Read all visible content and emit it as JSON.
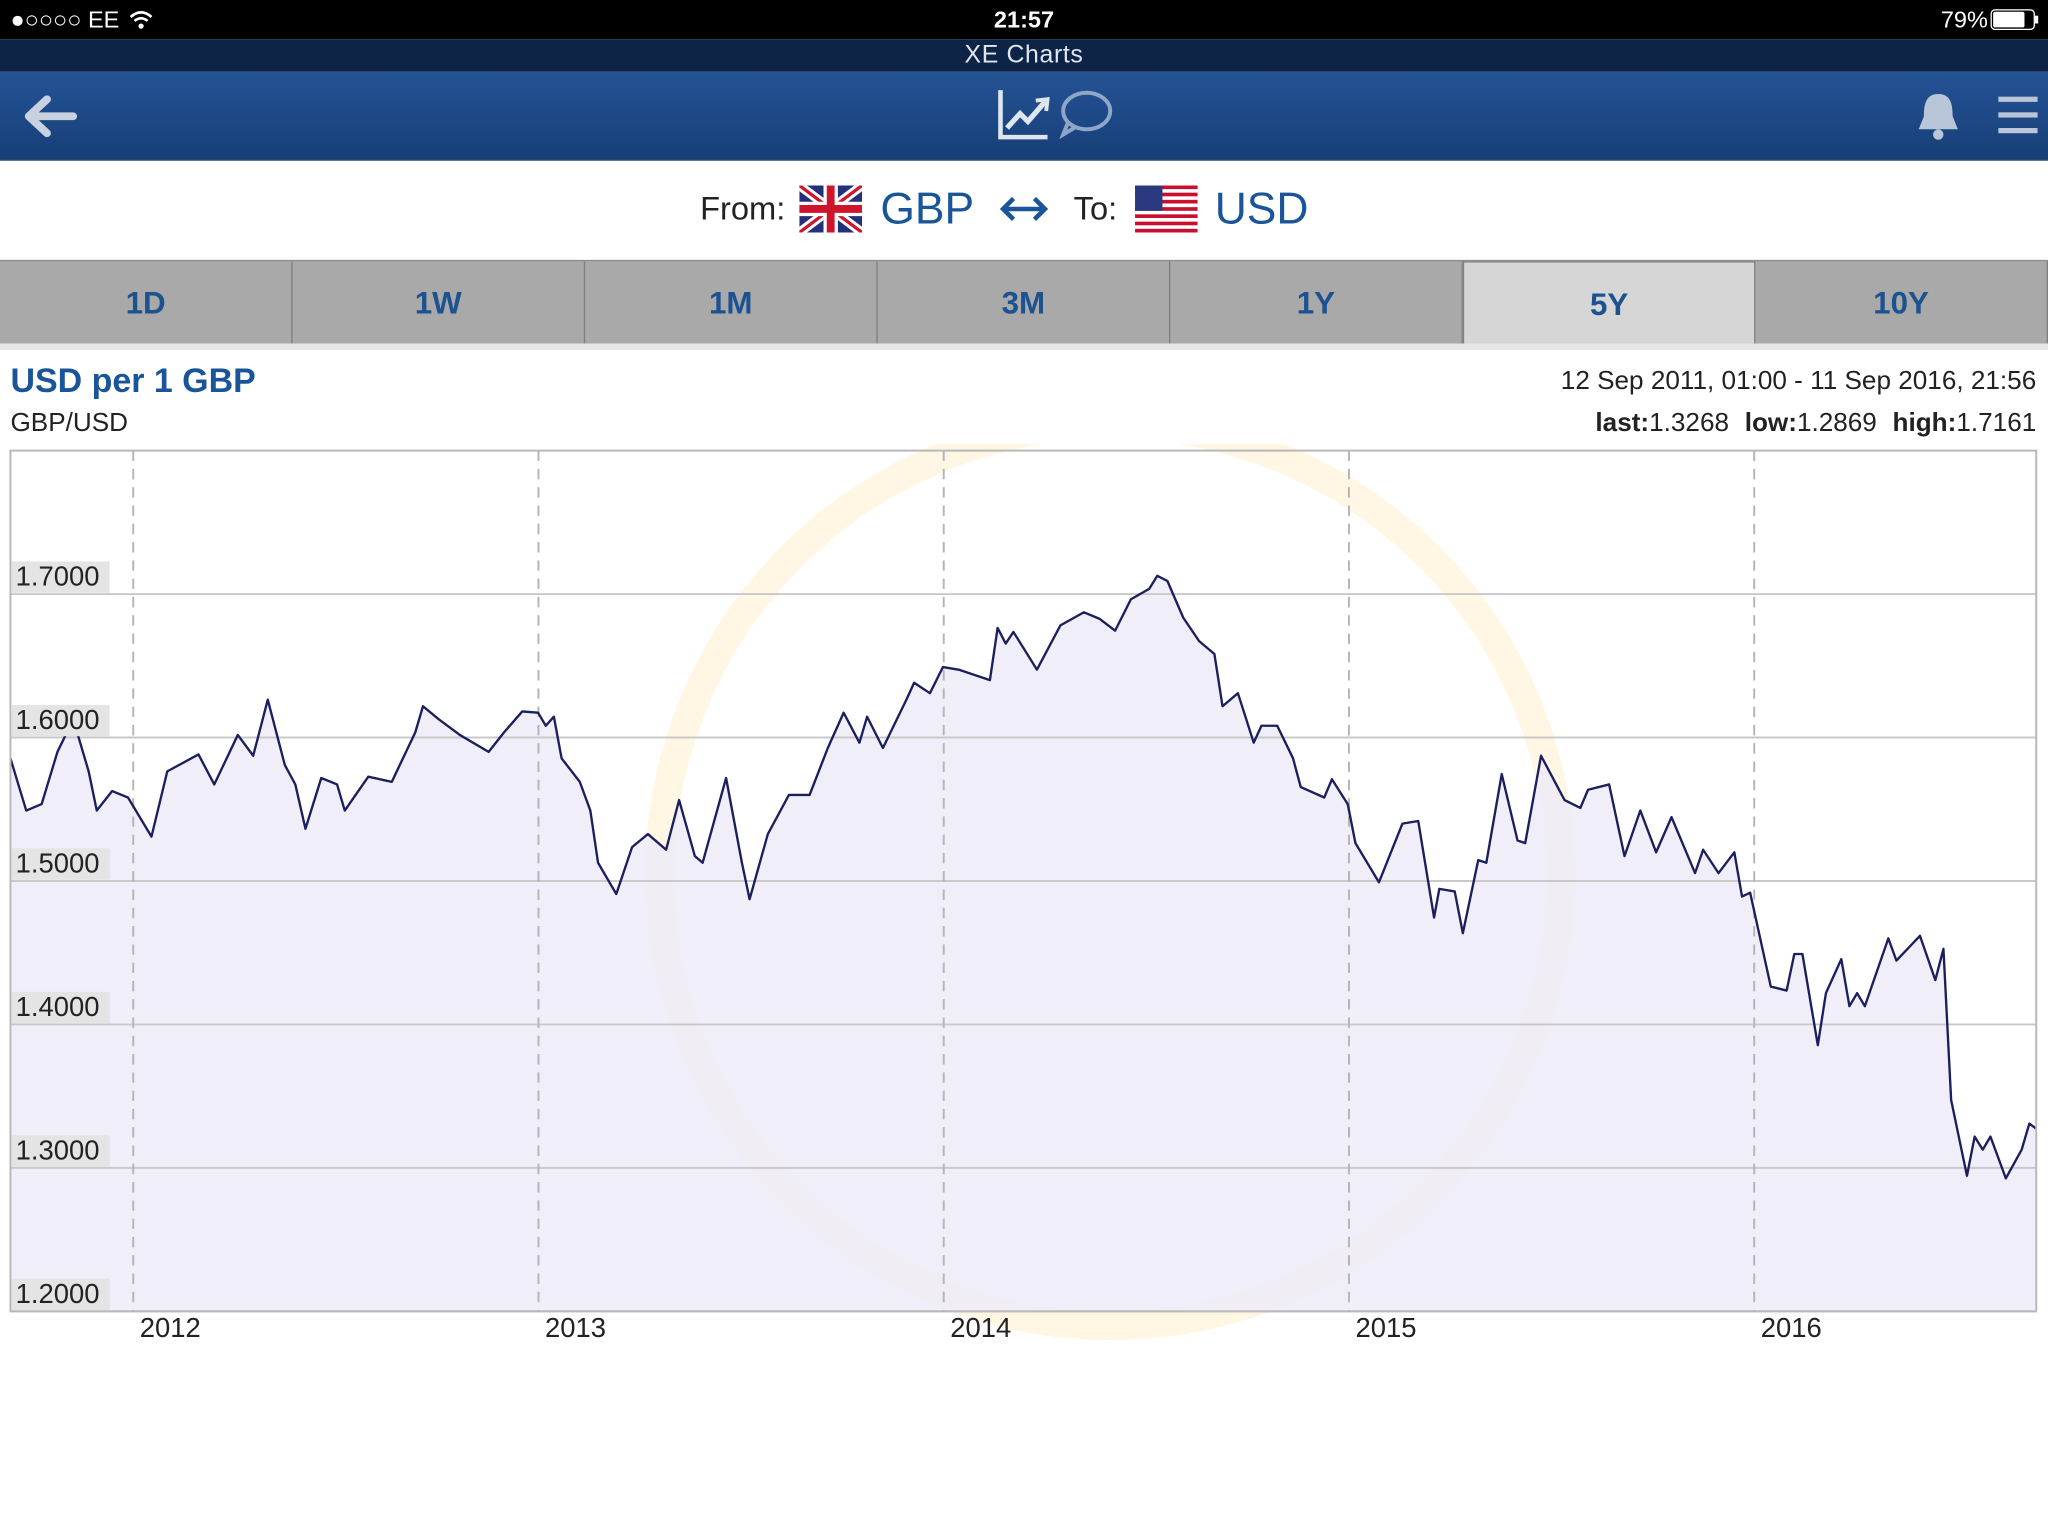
{
  "status_bar": {
    "carrier": "●○○○○ EE",
    "time": "21:57",
    "battery": "79%"
  },
  "app_title": "XE Charts",
  "converter": {
    "from_label": "From:",
    "from_currency": "GBP",
    "to_label": "To:",
    "to_currency": "USD"
  },
  "tabs": [
    "1D",
    "1W",
    "1M",
    "3M",
    "1Y",
    "5Y",
    "10Y"
  ],
  "selected_tab": 5,
  "chart_header": {
    "pair": "GBP/USD",
    "range": "12 Sep 2011, 01:00 - 11 Sep 2016, 21:56",
    "stats": [
      {
        "label": "last:",
        "value": 1.3268
      },
      {
        "label": "low:",
        "value": 1.2869
      },
      {
        "label": "high:",
        "value": 1.7161
      }
    ]
  },
  "chart_data": {
    "type": "line",
    "title": "USD per 1 GBP",
    "color": "#1b1f5e",
    "area_color": "#ecebf7",
    "grid": true,
    "xlim": [
      2011.697,
      2016.696
    ],
    "ylim": [
      1.2,
      1.8
    ],
    "xticks": [
      2012,
      2013,
      2014,
      2015,
      2016
    ],
    "yticks": [
      {
        "value": 1.2,
        "label": "1.2000"
      },
      {
        "value": 1.3,
        "label": "1.3000"
      },
      {
        "value": 1.4,
        "label": "1.4000"
      },
      {
        "value": 1.5,
        "label": "1.5000"
      },
      {
        "value": 1.6,
        "label": "1.6000"
      },
      {
        "value": 1.7,
        "label": "1.7000"
      }
    ],
    "x": [
      2011.697,
      2011.736,
      2011.774,
      2011.813,
      2011.852,
      2011.89,
      2011.91,
      2011.948,
      2011.987,
      2012.045,
      2012.084,
      2012.161,
      2012.2,
      2012.258,
      2012.296,
      2012.332,
      2012.374,
      2012.4,
      2012.425,
      2012.464,
      2012.503,
      2012.522,
      2012.58,
      2012.638,
      2012.696,
      2012.715,
      2012.754,
      2012.806,
      2012.877,
      2012.915,
      2012.96,
      2012.999,
      2013.018,
      2013.038,
      2013.057,
      2013.102,
      2013.128,
      2013.147,
      2013.192,
      2013.231,
      2013.27,
      2013.315,
      2013.347,
      2013.386,
      2013.405,
      2013.463,
      2013.502,
      2013.521,
      2013.566,
      2013.618,
      2013.669,
      2013.714,
      2013.753,
      2013.792,
      2013.811,
      2013.85,
      2013.908,
      2013.927,
      2013.966,
      2013.998,
      2014.037,
      2014.114,
      2014.133,
      2014.153,
      2014.172,
      2014.23,
      2014.288,
      2014.346,
      2014.385,
      2014.423,
      2014.462,
      2014.507,
      2014.527,
      2014.552,
      2014.591,
      2014.63,
      2014.668,
      2014.688,
      2014.726,
      2014.765,
      2014.784,
      2014.823,
      2014.862,
      2014.881,
      2014.939,
      2014.958,
      2014.997,
      2015.016,
      2015.074,
      2015.132,
      2015.171,
      2015.21,
      2015.223,
      2015.261,
      2015.281,
      2015.319,
      2015.339,
      2015.377,
      2015.416,
      2015.435,
      2015.474,
      2015.532,
      2015.571,
      2015.59,
      2015.642,
      2015.68,
      2015.719,
      2015.758,
      2015.796,
      2015.854,
      2015.874,
      2015.912,
      2015.951,
      2015.97,
      2015.99,
      2016.041,
      2016.08,
      2016.099,
      2016.119,
      2016.157,
      2016.177,
      2016.215,
      2016.235,
      2016.254,
      2016.273,
      2016.331,
      2016.351,
      2016.409,
      2016.447,
      2016.467,
      2016.486,
      2016.525,
      2016.544,
      2016.564,
      2016.583,
      2016.621,
      2016.66,
      2016.679,
      2016.696
    ],
    "values": [
      1.5855,
      1.5491,
      1.5536,
      1.59,
      1.6127,
      1.5764,
      1.5491,
      1.5627,
      1.5582,
      1.5309,
      1.5764,
      1.5882,
      1.5673,
      1.6018,
      1.5873,
      1.6264,
      1.5809,
      1.5673,
      1.5364,
      1.5718,
      1.5673,
      1.5491,
      1.5727,
      1.5691,
      1.6036,
      1.6218,
      1.6127,
      1.6018,
      1.59,
      1.6036,
      1.6182,
      1.6173,
      1.6082,
      1.6145,
      1.5855,
      1.5691,
      1.5491,
      1.5127,
      1.4909,
      1.5236,
      1.5327,
      1.5218,
      1.5564,
      1.5173,
      1.5127,
      1.5718,
      1.5127,
      1.4873,
      1.5327,
      1.56,
      1.56,
      1.5927,
      1.6173,
      1.5964,
      1.6145,
      1.5927,
      1.6264,
      1.6382,
      1.6309,
      1.6491,
      1.6473,
      1.64,
      1.6764,
      1.6655,
      1.6736,
      1.6473,
      1.6782,
      1.6873,
      1.6827,
      1.6745,
      1.6964,
      1.7036,
      1.7127,
      1.7091,
      1.6836,
      1.6673,
      1.6582,
      1.6218,
      1.6309,
      1.5964,
      1.6082,
      1.6082,
      1.5855,
      1.5655,
      1.5582,
      1.5709,
      1.5536,
      1.5264,
      1.4991,
      1.54,
      1.5418,
      1.4745,
      1.4945,
      1.4927,
      1.4636,
      1.5145,
      1.5127,
      1.5745,
      1.5282,
      1.5264,
      1.5873,
      1.5564,
      1.5509,
      1.5636,
      1.5673,
      1.5173,
      1.5491,
      1.52,
      1.5445,
      1.5055,
      1.5218,
      1.5055,
      1.52,
      1.4891,
      1.4918,
      1.4264,
      1.4236,
      1.4491,
      1.4491,
      1.3855,
      1.4218,
      1.4455,
      1.4127,
      1.4218,
      1.4127,
      1.46,
      1.4445,
      1.4618,
      1.4309,
      1.4527,
      1.3473,
      1.2945,
      1.3218,
      1.3127,
      1.3218,
      1.2927,
      1.3127,
      1.3309,
      1.3273
    ]
  }
}
